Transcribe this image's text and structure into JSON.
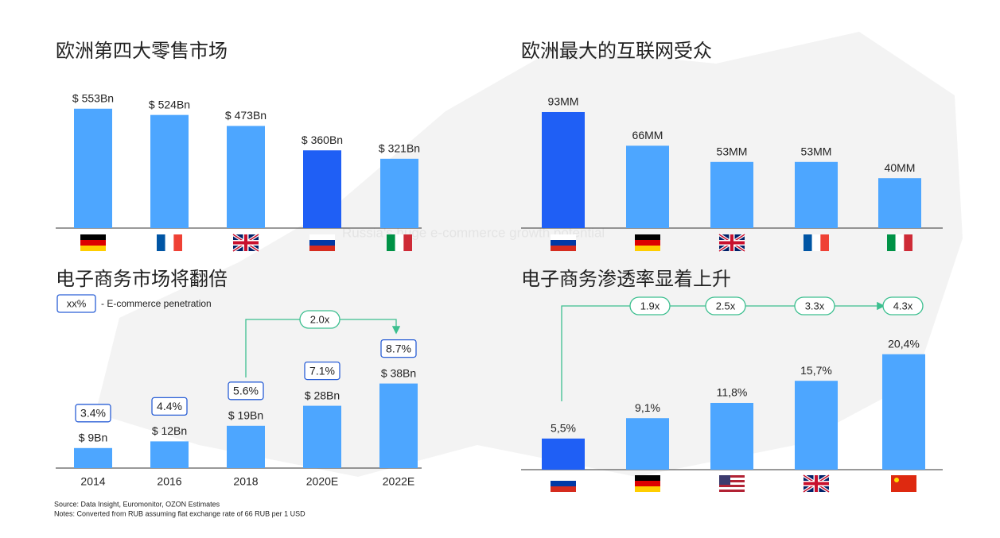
{
  "watermark": "Russia's huge e-commerce growth potential",
  "chart_data": [
    {
      "type": "bar",
      "title": "欧洲第四大零售市场",
      "categories": [
        null,
        null,
        null,
        null,
        null
      ],
      "values": [
        553,
        524,
        473,
        360,
        321
      ],
      "value_labels": [
        "$ 553Bn",
        "$ 524Bn",
        "$ 473Bn",
        "$ 360Bn",
        "$ 321Bn"
      ],
      "colors": [
        "#4da6ff",
        "#4da6ff",
        "#4da6ff",
        "#1f5ff5",
        "#4da6ff"
      ],
      "ylim": [
        0,
        600
      ]
    },
    {
      "type": "bar",
      "title": "欧洲最大的互联网受众",
      "categories": [
        null,
        null,
        null,
        null,
        null
      ],
      "values": [
        93,
        66,
        53,
        53,
        40
      ],
      "value_labels": [
        "93MM",
        "66MM",
        "53MM",
        "53MM",
        "40MM"
      ],
      "colors": [
        "#1f5ff5",
        "#4da6ff",
        "#4da6ff",
        "#4da6ff",
        "#4da6ff"
      ],
      "ylim": [
        0,
        100
      ]
    },
    {
      "type": "bar",
      "title": "电子商务市场将翻倍",
      "legend": {
        "marker": "xx%",
        "text": "- E-commerce penetration"
      },
      "categories": [
        "2014",
        "2016",
        "2018",
        "2020E",
        "2022E"
      ],
      "values": [
        9,
        12,
        19,
        28,
        38
      ],
      "value_labels": [
        "$ 9Bn",
        "$ 12Bn",
        "$ 19Bn",
        "$ 28Bn",
        "$ 38Bn"
      ],
      "penetration_values": [
        3.4,
        4.4,
        5.6,
        7.1,
        8.7
      ],
      "penetration_labels": [
        "3.4%",
        "4.4%",
        "5.6%",
        "7.1%",
        "8.7%"
      ],
      "colors": [
        "#4da6ff",
        "#4da6ff",
        "#4da6ff",
        "#4da6ff",
        "#4da6ff"
      ],
      "ylim": [
        0,
        40
      ],
      "annotations": [
        "2.0x"
      ]
    },
    {
      "type": "bar",
      "title": "电子商务渗透率显着上升",
      "categories": [
        null,
        null,
        null,
        null,
        null
      ],
      "values": [
        5.5,
        9.1,
        11.8,
        15.7,
        20.4
      ],
      "value_labels": [
        "5,5%",
        "9,1%",
        "11,8%",
        "15,7%",
        "20,4%"
      ],
      "colors": [
        "#1f5ff5",
        "#4da6ff",
        "#4da6ff",
        "#4da6ff",
        "#4da6ff"
      ],
      "ylim": [
        0,
        25
      ],
      "annotations": [
        "1.9x",
        "2.5x",
        "3.3x",
        "4.3x"
      ]
    }
  ],
  "source": "Source: Data Insight, Euromonitor, OZON Estimates",
  "notes": "Notes: Converted from RUB assuming flat exchange rate of 66 RUB per 1 USD"
}
